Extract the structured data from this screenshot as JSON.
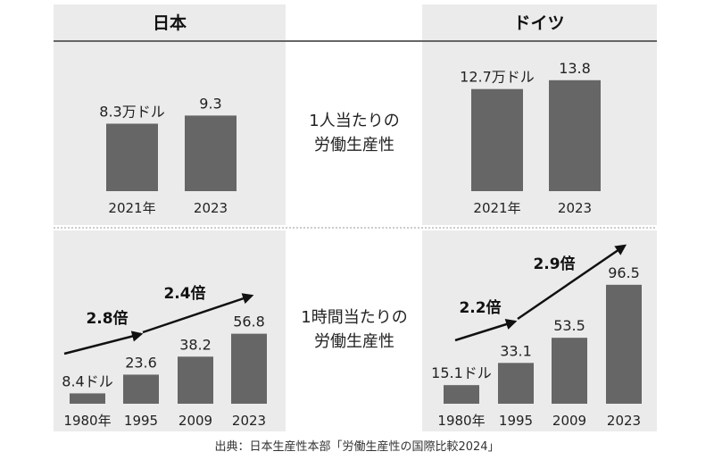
{
  "headers": {
    "left": "日本",
    "right": "ドイツ"
  },
  "middle_labels": {
    "top": [
      "1人当たりの",
      "労働生産性"
    ],
    "bottom": [
      "1時間当たりの",
      "労働生産性"
    ]
  },
  "source": "出典：日本生産性本部「労働生産性の国際比較2024」",
  "colors": {
    "bar": "#666666",
    "panel": "#ebebeb",
    "arrow": "#111111"
  },
  "chart_data": [
    {
      "type": "bar",
      "panel": "japan-per-person",
      "categories": [
        "2021年",
        "2023"
      ],
      "values": [
        8.3,
        9.3
      ],
      "value_labels": [
        "8.3万ドル",
        "9.3"
      ],
      "ylim": [
        0,
        15
      ]
    },
    {
      "type": "bar",
      "panel": "germany-per-person",
      "categories": [
        "2021年",
        "2023"
      ],
      "values": [
        12.7,
        13.8
      ],
      "value_labels": [
        "12.7万ドル",
        "13.8"
      ],
      "ylim": [
        0,
        15
      ]
    },
    {
      "type": "bar",
      "panel": "japan-per-hour",
      "categories": [
        "1980年",
        "1995",
        "2009",
        "2023"
      ],
      "values": [
        8.4,
        23.6,
        38.2,
        56.8
      ],
      "value_labels": [
        "8.4ドル",
        "23.6",
        "38.2",
        "56.8"
      ],
      "ylim": [
        0,
        100
      ],
      "annotations": [
        {
          "text": "2.8倍",
          "from": "1980年",
          "to": "1995"
        },
        {
          "text": "2.4倍",
          "from": "1995",
          "to": "2023"
        }
      ]
    },
    {
      "type": "bar",
      "panel": "germany-per-hour",
      "categories": [
        "1980年",
        "1995",
        "2009",
        "2023"
      ],
      "values": [
        15.1,
        33.1,
        53.5,
        96.5
      ],
      "value_labels": [
        "15.1ドル",
        "33.1",
        "53.5",
        "96.5"
      ],
      "ylim": [
        0,
        100
      ],
      "annotations": [
        {
          "text": "2.2倍",
          "from": "1980年",
          "to": "1995"
        },
        {
          "text": "2.9倍",
          "from": "1995",
          "to": "2023"
        }
      ]
    }
  ]
}
